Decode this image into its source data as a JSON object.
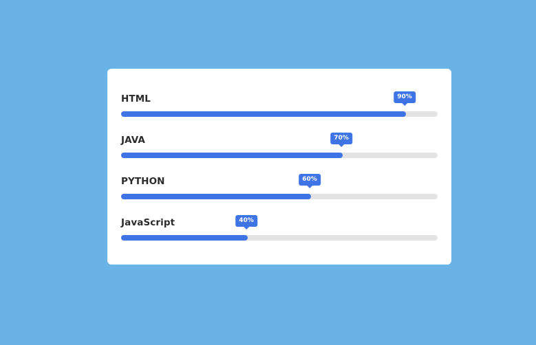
{
  "skills": [
    {
      "name": "HTML",
      "percent_label": "90%",
      "value": 0.9
    },
    {
      "name": "JAVA",
      "percent_label": "70%",
      "value": 0.7
    },
    {
      "name": "PYTHON",
      "percent_label": "60%",
      "value": 0.6
    },
    {
      "name": "JavaScript",
      "percent_label": "40%",
      "value": 0.4
    }
  ],
  "colors": {
    "background": "#6ab3e6",
    "card": "#ffffff",
    "accent": "#3f74e6",
    "track": "#e3e3e3",
    "text": "#2b2b2b"
  }
}
